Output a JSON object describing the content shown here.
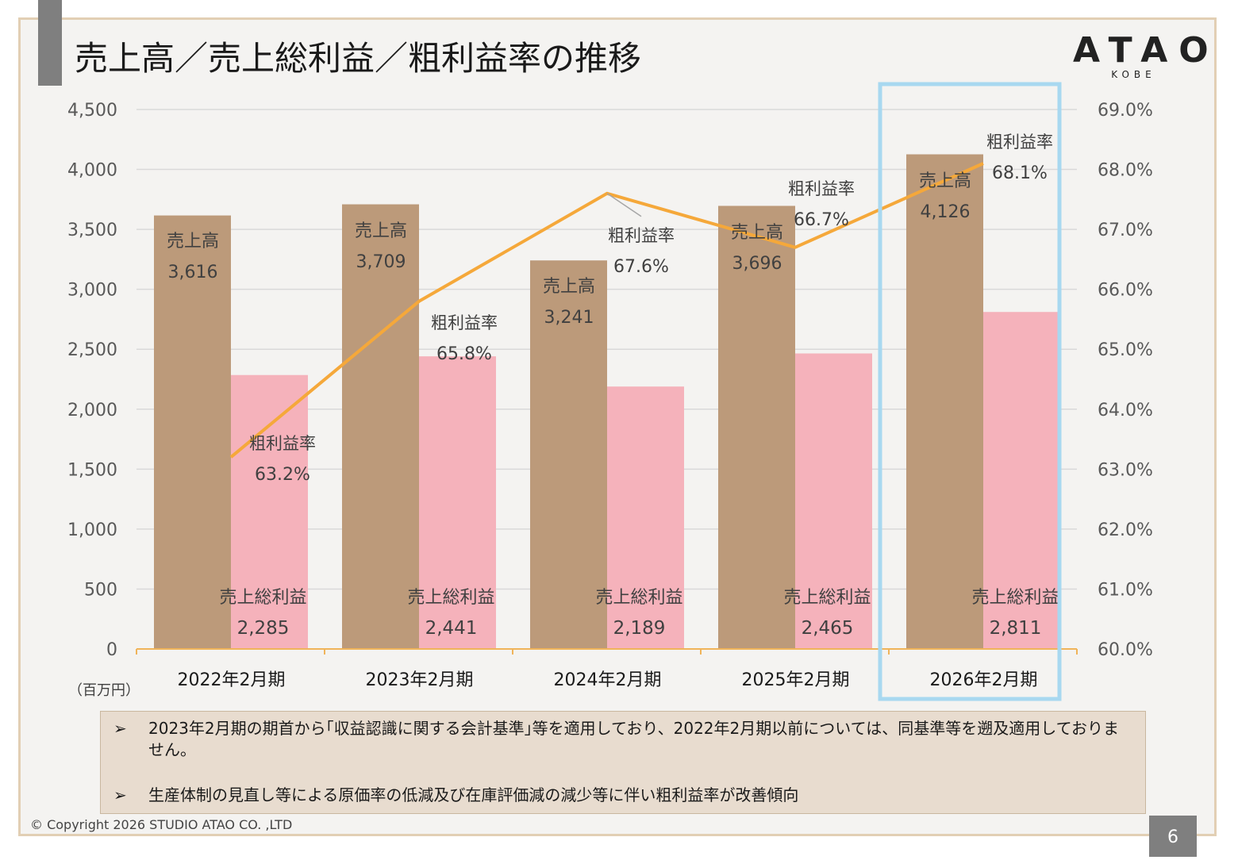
{
  "title": "売上高／売上総利益／粗利益率の推移",
  "logo": {
    "main": "ATAO",
    "sub": "KOBE"
  },
  "chart_data": {
    "type": "bar",
    "categories": [
      "2022年2月期",
      "2023年2月期",
      "2024年2月期",
      "2025年2月期",
      "2026年2月期"
    ],
    "series": [
      {
        "name": "売上高",
        "type": "bar",
        "values": [
          3616,
          3709,
          3241,
          3696,
          4126
        ],
        "labels": [
          "3,616",
          "3,709",
          "3,241",
          "3,696",
          "4,126"
        ],
        "color": "#bc9a7a"
      },
      {
        "name": "売上総利益",
        "type": "bar",
        "values": [
          2285,
          2441,
          2189,
          2465,
          2811
        ],
        "labels": [
          "2,285",
          "2,441",
          "2,189",
          "2,465",
          "2,811"
        ],
        "color": "#f5b2bb"
      },
      {
        "name": "粗利益率",
        "type": "line",
        "axis": "right",
        "values": [
          63.2,
          65.8,
          67.6,
          66.7,
          68.1
        ],
        "labels": [
          "63.2%",
          "65.8%",
          "67.6%",
          "66.7%",
          "68.1%"
        ],
        "color": "#f5a83a"
      }
    ],
    "y_left": {
      "ylim": [
        0,
        4500
      ],
      "ticks": [
        "0",
        "500",
        "1,000",
        "1,500",
        "2,000",
        "2,500",
        "3,000",
        "3,500",
        "4,000",
        "4,500"
      ],
      "unit": "（百万円）"
    },
    "y_right": {
      "ylim": [
        60,
        69
      ],
      "ticks": [
        "60.0%",
        "61.0%",
        "62.0%",
        "63.0%",
        "64.0%",
        "65.0%",
        "66.0%",
        "67.0%",
        "68.0%",
        "69.0%"
      ]
    },
    "grid": true,
    "highlight_category": "2026年2月期",
    "highlight_color": "#a8d8f0"
  },
  "notes": [
    {
      "bullet": "➢",
      "text": "2023年2月期の期首から｢収益認識に関する会計基準｣等を適用しており、2022年2月期以前については、同基準等を遡及適用しておりません。"
    },
    {
      "bullet": "➢",
      "text": "生産体制の見直し等による原価率の低減及び在庫評価減の減少等に伴い粗利益率が改善傾向"
    }
  ],
  "copyright": "© Copyright 2026 STUDIO ATAO CO. ,LTD",
  "page_number": "6"
}
